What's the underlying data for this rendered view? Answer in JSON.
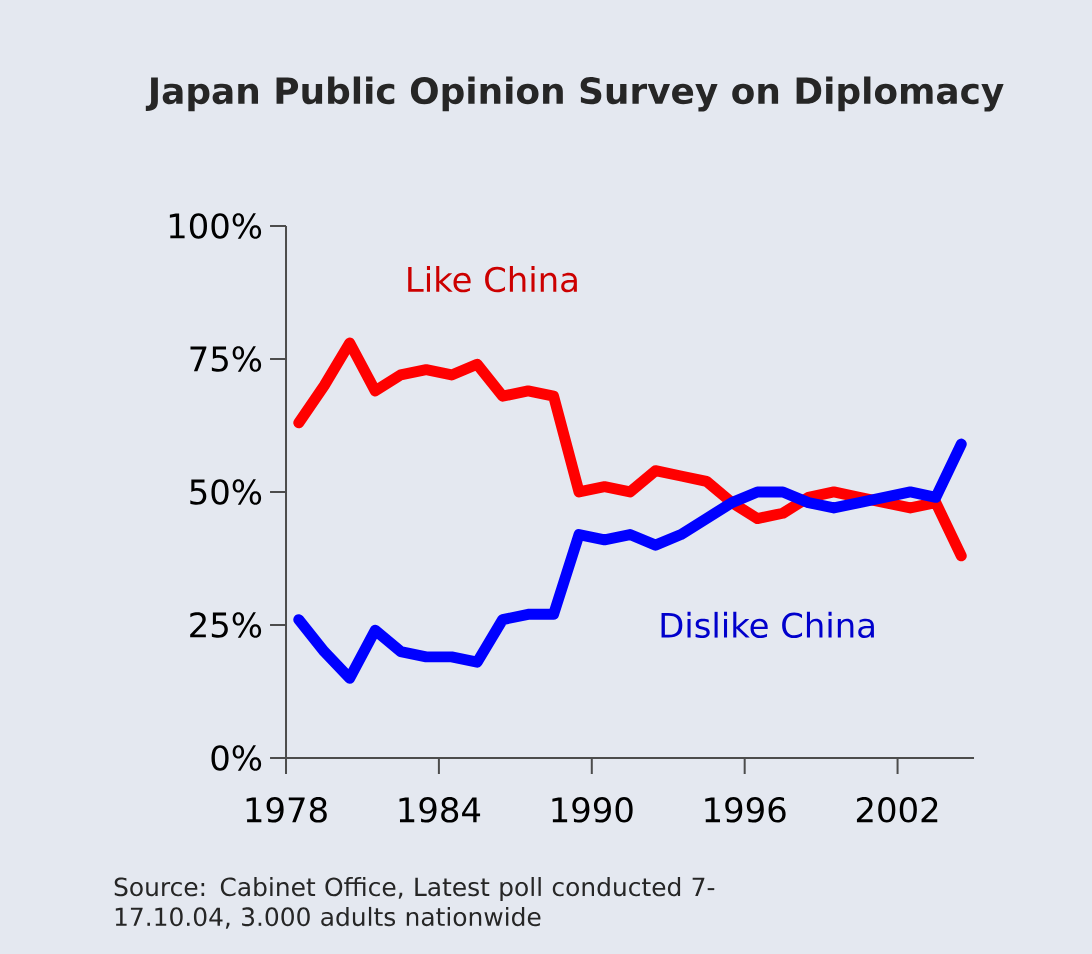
{
  "chart_data": {
    "type": "line",
    "title": "Japan Public Opinion Survey on Diplomacy",
    "x": [
      1978.5,
      1979.5,
      1980.5,
      1981.5,
      1982.5,
      1983.5,
      1984.5,
      1985.5,
      1986.5,
      1987.5,
      1988.5,
      1989.5,
      1990.5,
      1991.5,
      1992.5,
      1993.5,
      1994.5,
      1995.5,
      1996.5,
      1997.5,
      1998.5,
      1999.5,
      2000.5,
      2001.5,
      2002.5,
      2003.5,
      2004.5
    ],
    "series": [
      {
        "name": "Like China",
        "color": "#ff0000",
        "values": [
          63,
          70,
          78,
          69,
          72,
          73,
          72,
          74,
          68,
          69,
          68,
          50,
          51,
          50,
          54,
          53,
          52,
          48,
          45,
          46,
          49,
          50,
          49,
          48,
          47,
          48,
          38
        ]
      },
      {
        "name": "Dislike China",
        "color": "#0000ff",
        "values": [
          26,
          20,
          15,
          24,
          20,
          19,
          19,
          18,
          26,
          27,
          27,
          42,
          41,
          42,
          40,
          42,
          45,
          48,
          50,
          50,
          48,
          47,
          48,
          49,
          50,
          49,
          59
        ]
      }
    ],
    "xlim": [
      1978,
      2005
    ],
    "xticks": [
      1978,
      1984,
      1990,
      1996,
      2002
    ],
    "ylim": [
      0,
      100
    ],
    "yticks": [
      {
        "value": 0,
        "label": "0%"
      },
      {
        "value": 25,
        "label": "25%"
      },
      {
        "value": 50,
        "label": "50%"
      },
      {
        "value": 75,
        "label": "75%"
      },
      {
        "value": 100,
        "label": "100%"
      }
    ],
    "grid": false,
    "legend": false,
    "marker": "none",
    "line_style": "solid",
    "annotations": [
      "Source:  Cabinet Office, Latest poll conducted 7-17.10.04, 3.000 adults nationwide"
    ]
  }
}
